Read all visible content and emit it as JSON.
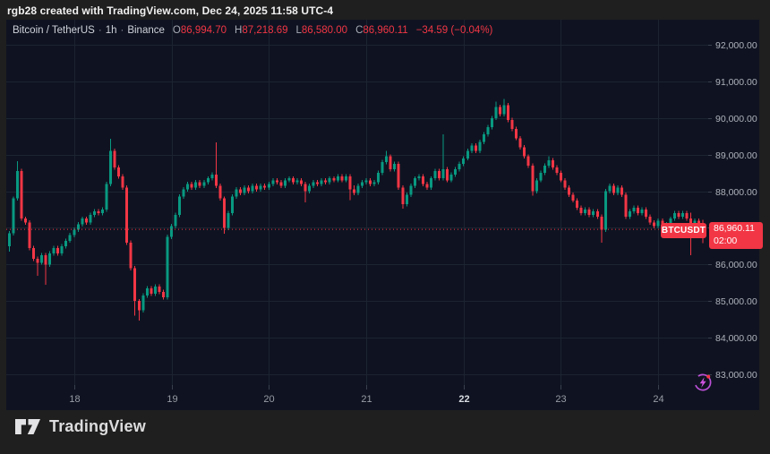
{
  "topbar": {
    "attribution": "rgb28 created with TradingView.com, Dec 24, 2025 11:58 UTC-4"
  },
  "legend": {
    "symbol_title": "Bitcoin / TetherUS",
    "interval": "1h",
    "exchange": "Binance",
    "separator": "·",
    "ohlc": [
      {
        "prefix": "O",
        "value": "86,994.70"
      },
      {
        "prefix": "H",
        "value": "87,218.69"
      },
      {
        "prefix": "L",
        "value": "86,580.00"
      },
      {
        "prefix": "C",
        "value": "86,960.11"
      }
    ],
    "change": "−34.59 (−0.04%)"
  },
  "price_label": {
    "symbol": "BTCUSDT",
    "price": "86,960.11",
    "countdown": "02:00"
  },
  "footer": {
    "brand": "TradingView"
  },
  "colors": {
    "up": "#089981",
    "down": "#f23645",
    "accent": "#f23645",
    "panel_bg": "#0f1321",
    "outer_bg": "#1f1f1f",
    "grid": "#1c2331",
    "axis_text": "#aeb2bc",
    "time_text": "#989ca6",
    "time_text_emphasis": "#d9dce2",
    "bolt_purple": "#bb4fd6",
    "badge_red": "#f23645"
  },
  "chart_data": {
    "type": "candlestick",
    "symbol": "BTCUSDT",
    "exchange": "Binance",
    "interval": "1h",
    "current_price": 86960.11,
    "current_price_label": "86,960.11",
    "countdown": "02:00",
    "legend_ohlc": {
      "open": 86994.7,
      "high": 87218.69,
      "low": 86580.0,
      "close": 86960.11,
      "change": -34.59,
      "change_pct": -0.04
    },
    "y_axis": {
      "grid": true,
      "side": "right",
      "ticks": [
        {
          "value": 92000,
          "label": "92,000.00"
        },
        {
          "value": 91000,
          "label": "91,000.00"
        },
        {
          "value": 90000,
          "label": "90,000.00"
        },
        {
          "value": 89000,
          "label": "89,000.00"
        },
        {
          "value": 88000,
          "label": "88,000.00"
        },
        {
          "value": 87000,
          "label": "87,000.00"
        },
        {
          "value": 86000,
          "label": "86,000.00"
        },
        {
          "value": 85000,
          "label": "85,000.00"
        },
        {
          "value": 84000,
          "label": "84,000.00"
        },
        {
          "value": 83000,
          "label": "83,000.00"
        }
      ],
      "visible_range": [
        82700,
        92690
      ]
    },
    "x_axis": {
      "unit": "day of December 2025",
      "day_ticks": [
        {
          "label": "18",
          "candle_index": 16,
          "emphasis": false
        },
        {
          "label": "19",
          "candle_index": 40,
          "emphasis": false
        },
        {
          "label": "20",
          "candle_index": 64,
          "emphasis": false
        },
        {
          "label": "21",
          "candle_index": 88,
          "emphasis": false
        },
        {
          "label": "22",
          "candle_index": 112,
          "emphasis": true
        },
        {
          "label": "23",
          "candle_index": 136,
          "emphasis": false
        },
        {
          "label": "24",
          "candle_index": 160,
          "emphasis": false
        }
      ]
    },
    "candles_format": [
      "open",
      "high",
      "low",
      "close"
    ],
    "candles": [
      [
        86500,
        86910,
        86350,
        86850
      ],
      [
        86850,
        87860,
        86790,
        87800
      ],
      [
        87800,
        88820,
        87740,
        88550
      ],
      [
        88550,
        88610,
        87190,
        87250
      ],
      [
        87250,
        87310,
        87090,
        87150
      ],
      [
        87150,
        87210,
        86390,
        86450
      ],
      [
        86450,
        86510,
        86090,
        86150
      ],
      [
        86150,
        86210,
        85690,
        86050
      ],
      [
        86050,
        86310,
        85990,
        86250
      ],
      [
        86250,
        86310,
        85450,
        86000
      ],
      [
        86000,
        86360,
        85940,
        86300
      ],
      [
        86300,
        86510,
        86240,
        86450
      ],
      [
        86450,
        86510,
        86240,
        86300
      ],
      [
        86300,
        86560,
        86240,
        86500
      ],
      [
        86500,
        86710,
        86440,
        86650
      ],
      [
        86650,
        86860,
        86590,
        86800
      ],
      [
        86800,
        87010,
        86740,
        86950
      ],
      [
        86950,
        87160,
        86890,
        87100
      ],
      [
        87100,
        87310,
        87040,
        87250
      ],
      [
        87250,
        87310,
        87090,
        87150
      ],
      [
        87150,
        87410,
        87090,
        87350
      ],
      [
        87350,
        87510,
        87290,
        87450
      ],
      [
        87450,
        87510,
        87340,
        87400
      ],
      [
        87400,
        87560,
        87340,
        87500
      ],
      [
        87500,
        88260,
        87440,
        88200
      ],
      [
        88200,
        89430,
        88140,
        89100
      ],
      [
        89100,
        89160,
        88590,
        88650
      ],
      [
        88650,
        88710,
        88340,
        88400
      ],
      [
        88400,
        88460,
        88040,
        88100
      ],
      [
        88100,
        88160,
        86540,
        86600
      ],
      [
        86600,
        86660,
        85840,
        85900
      ],
      [
        85900,
        85960,
        84600,
        85000
      ],
      [
        85000,
        85060,
        84470,
        84750
      ],
      [
        84750,
        85210,
        84690,
        85150
      ],
      [
        85150,
        85410,
        85090,
        85350
      ],
      [
        85350,
        85410,
        85140,
        85200
      ],
      [
        85200,
        85460,
        85140,
        85400
      ],
      [
        85400,
        85460,
        85190,
        85250
      ],
      [
        85250,
        85310,
        85040,
        85100
      ],
      [
        85100,
        86810,
        85040,
        86750
      ],
      [
        86750,
        87110,
        86690,
        87050
      ],
      [
        87050,
        87410,
        86990,
        87350
      ],
      [
        87350,
        87910,
        87290,
        87850
      ],
      [
        87850,
        88110,
        87790,
        88050
      ],
      [
        88050,
        88260,
        87990,
        88200
      ],
      [
        88200,
        88260,
        88040,
        88100
      ],
      [
        88100,
        88310,
        88040,
        88250
      ],
      [
        88250,
        88310,
        88090,
        88150
      ],
      [
        88150,
        88310,
        88090,
        88250
      ],
      [
        88250,
        88410,
        88190,
        88350
      ],
      [
        88350,
        88510,
        88290,
        88450
      ],
      [
        88450,
        89330,
        88090,
        88150
      ],
      [
        88150,
        88210,
        87740,
        87800
      ],
      [
        87800,
        87860,
        86840,
        87000
      ],
      [
        87000,
        87460,
        86940,
        87400
      ],
      [
        87400,
        87910,
        87340,
        87850
      ],
      [
        87850,
        88110,
        87790,
        88050
      ],
      [
        88050,
        88110,
        87890,
        87950
      ],
      [
        87950,
        88160,
        87890,
        88100
      ],
      [
        88100,
        88160,
        87940,
        88000
      ],
      [
        88000,
        88210,
        87940,
        88150
      ],
      [
        88150,
        88210,
        87990,
        88050
      ],
      [
        88050,
        88210,
        87990,
        88150
      ],
      [
        88150,
        88210,
        88040,
        88100
      ],
      [
        88100,
        88260,
        88040,
        88200
      ],
      [
        88200,
        88360,
        88140,
        88300
      ],
      [
        88300,
        88360,
        88190,
        88250
      ],
      [
        88250,
        88310,
        88090,
        88150
      ],
      [
        88150,
        88360,
        88090,
        88300
      ],
      [
        88300,
        88410,
        88240,
        88350
      ],
      [
        88350,
        88410,
        88190,
        88250
      ],
      [
        88250,
        88360,
        88190,
        88300
      ],
      [
        88300,
        88360,
        88140,
        88200
      ],
      [
        88200,
        88260,
        87700,
        88000
      ],
      [
        88000,
        88210,
        87940,
        88150
      ],
      [
        88150,
        88310,
        88090,
        88250
      ],
      [
        88250,
        88310,
        88140,
        88200
      ],
      [
        88200,
        88360,
        88140,
        88300
      ],
      [
        88300,
        88360,
        88190,
        88250
      ],
      [
        88250,
        88410,
        88190,
        88350
      ],
      [
        88350,
        88410,
        88240,
        88300
      ],
      [
        88300,
        88460,
        88240,
        88400
      ],
      [
        88400,
        88460,
        88240,
        88300
      ],
      [
        88300,
        88460,
        88240,
        88400
      ],
      [
        88400,
        88460,
        87760,
        88050
      ],
      [
        88050,
        88160,
        87890,
        87950
      ],
      [
        87950,
        88210,
        87890,
        88150
      ],
      [
        88150,
        88310,
        88090,
        88250
      ],
      [
        88250,
        88360,
        88190,
        88300
      ],
      [
        88300,
        88360,
        88140,
        88200
      ],
      [
        88200,
        88310,
        88140,
        88250
      ],
      [
        88250,
        88560,
        88190,
        88500
      ],
      [
        88500,
        88860,
        88440,
        88800
      ],
      [
        88800,
        89100,
        88740,
        88950
      ],
      [
        88950,
        89010,
        88540,
        88600
      ],
      [
        88600,
        88810,
        88540,
        88750
      ],
      [
        88750,
        88810,
        88040,
        88100
      ],
      [
        88100,
        88160,
        87530,
        87650
      ],
      [
        87650,
        87960,
        87590,
        87900
      ],
      [
        87900,
        88210,
        87840,
        88150
      ],
      [
        88150,
        88410,
        88090,
        88350
      ],
      [
        88350,
        88460,
        88290,
        88400
      ],
      [
        88400,
        88460,
        88140,
        88200
      ],
      [
        88200,
        88260,
        88040,
        88100
      ],
      [
        88100,
        88410,
        88040,
        88350
      ],
      [
        88350,
        88610,
        88290,
        88550
      ],
      [
        88550,
        88610,
        88290,
        88350
      ],
      [
        88350,
        89560,
        88290,
        88600
      ],
      [
        88600,
        88660,
        88240,
        88300
      ],
      [
        88300,
        88510,
        88240,
        88450
      ],
      [
        88450,
        88660,
        88390,
        88600
      ],
      [
        88600,
        88810,
        88540,
        88750
      ],
      [
        88750,
        88960,
        88690,
        88900
      ],
      [
        88900,
        89160,
        88840,
        89100
      ],
      [
        89100,
        89310,
        89040,
        89250
      ],
      [
        89250,
        89310,
        89040,
        89100
      ],
      [
        89100,
        89410,
        89040,
        89350
      ],
      [
        89350,
        89610,
        89290,
        89550
      ],
      [
        89550,
        89810,
        89490,
        89750
      ],
      [
        89750,
        90060,
        89690,
        90000
      ],
      [
        90000,
        90450,
        89940,
        90300
      ],
      [
        90300,
        90360,
        90040,
        90100
      ],
      [
        90100,
        90520,
        90040,
        90350
      ],
      [
        90350,
        90410,
        89890,
        89950
      ],
      [
        89950,
        90010,
        89640,
        89700
      ],
      [
        89700,
        89760,
        89390,
        89450
      ],
      [
        89450,
        89510,
        89140,
        89200
      ],
      [
        89200,
        89260,
        88890,
        88950
      ],
      [
        88950,
        89010,
        88640,
        88700
      ],
      [
        88700,
        88760,
        87880,
        88000
      ],
      [
        88000,
        88360,
        87940,
        88300
      ],
      [
        88300,
        88560,
        88240,
        88500
      ],
      [
        88500,
        88760,
        88440,
        88700
      ],
      [
        88700,
        88950,
        88640,
        88850
      ],
      [
        88850,
        88910,
        88590,
        88650
      ],
      [
        88650,
        88710,
        88440,
        88500
      ],
      [
        88500,
        88560,
        88240,
        88300
      ],
      [
        88300,
        88360,
        88040,
        88100
      ],
      [
        88100,
        88160,
        87840,
        87900
      ],
      [
        87900,
        87960,
        87690,
        87750
      ],
      [
        87750,
        87810,
        87490,
        87550
      ],
      [
        87550,
        87610,
        87340,
        87400
      ],
      [
        87400,
        87560,
        87340,
        87500
      ],
      [
        87500,
        87560,
        87290,
        87350
      ],
      [
        87350,
        87510,
        87290,
        87450
      ],
      [
        87450,
        87510,
        87240,
        87300
      ],
      [
        87300,
        87360,
        86590,
        86950
      ],
      [
        86950,
        88060,
        86890,
        88000
      ],
      [
        88000,
        88210,
        87940,
        88150
      ],
      [
        88150,
        88210,
        87890,
        87950
      ],
      [
        87950,
        88160,
        87890,
        88100
      ],
      [
        88100,
        88160,
        87840,
        87900
      ],
      [
        87900,
        87960,
        87240,
        87300
      ],
      [
        87300,
        87510,
        87240,
        87450
      ],
      [
        87450,
        87610,
        87390,
        87550
      ],
      [
        87550,
        87610,
        87340,
        87400
      ],
      [
        87400,
        87560,
        87340,
        87500
      ],
      [
        87500,
        87560,
        87240,
        87300
      ],
      [
        87300,
        87360,
        87090,
        87150
      ],
      [
        87150,
        87210,
        86990,
        87050
      ],
      [
        87050,
        87260,
        86990,
        87200
      ],
      [
        87200,
        87260,
        86820,
        87000
      ],
      [
        87000,
        87160,
        86940,
        87100
      ],
      [
        87100,
        87310,
        87040,
        87250
      ],
      [
        87250,
        87460,
        87190,
        87400
      ],
      [
        87400,
        87460,
        87240,
        87300
      ],
      [
        87300,
        87460,
        87240,
        87400
      ],
      [
        87400,
        87460,
        87190,
        87250
      ],
      [
        87250,
        87410,
        86250,
        87050
      ],
      [
        87050,
        87260,
        86990,
        87200
      ],
      [
        87200,
        87260,
        86930,
        86994.7
      ],
      [
        86994.7,
        87218.69,
        86580,
        86960.11
      ]
    ]
  }
}
